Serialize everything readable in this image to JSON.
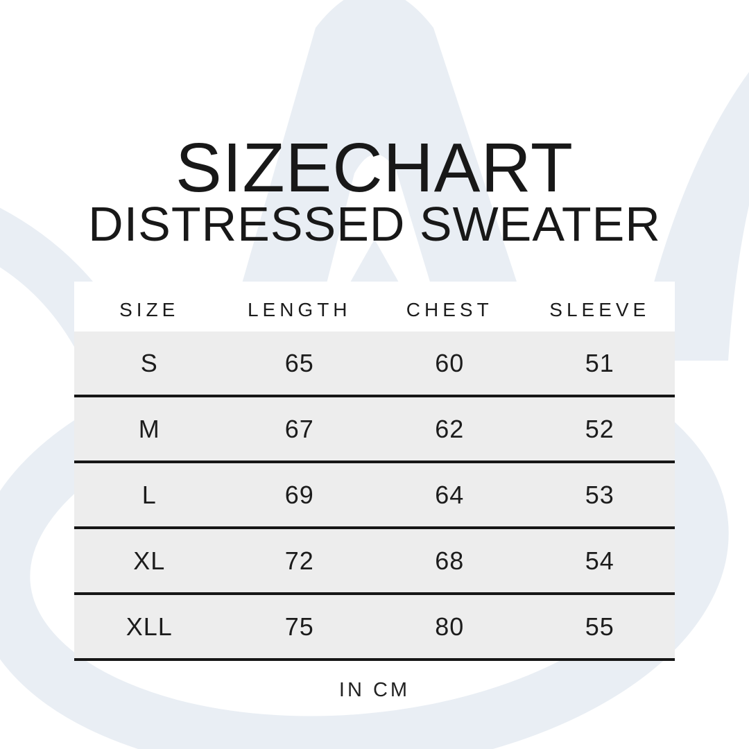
{
  "page": {
    "title": "SIZECHART",
    "subtitle": "DISTRESSED SWEATER",
    "unit_note": "IN CM"
  },
  "table": {
    "columns": [
      "SIZE",
      "LENGTH",
      "CHEST",
      "SLEEVE"
    ],
    "rows": [
      [
        "S",
        "65",
        "60",
        "51"
      ],
      [
        "M",
        "67",
        "62",
        "52"
      ],
      [
        "L",
        "69",
        "64",
        "53"
      ],
      [
        "XL",
        "72",
        "68",
        "54"
      ],
      [
        "XLL",
        "75",
        "80",
        "55"
      ]
    ]
  },
  "colors": {
    "background": "#ffffff",
    "watermark": "#e9eef4",
    "row_fill": "#ededed",
    "divider_line": "#161616",
    "text": "#1a1a1a"
  },
  "icons": {
    "watermark_icon": "lotus-flower-watermark"
  },
  "chart_data": {
    "type": "table",
    "title": "SIZECHART",
    "subtitle": "DISTRESSED SWEATER",
    "unit": "cm",
    "columns": [
      "SIZE",
      "LENGTH",
      "CHEST",
      "SLEEVE"
    ],
    "rows": [
      [
        "S",
        65,
        60,
        51
      ],
      [
        "M",
        67,
        62,
        52
      ],
      [
        "L",
        69,
        64,
        53
      ],
      [
        "XL",
        72,
        68,
        54
      ],
      [
        "XLL",
        75,
        80,
        55
      ]
    ]
  }
}
